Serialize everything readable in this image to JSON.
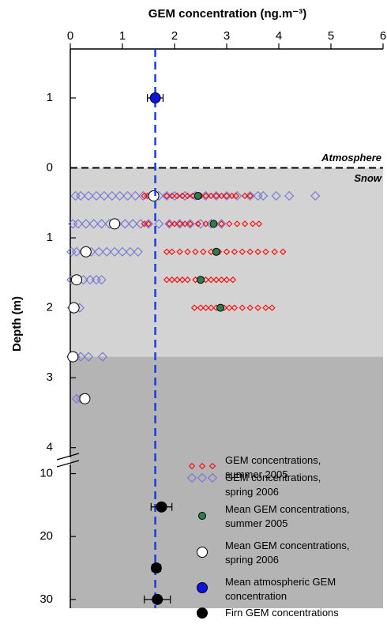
{
  "chart_data": {
    "type": "scatter",
    "title": "GEM concentration (ng.m⁻³)",
    "y_label": "Depth (m)",
    "xlim": [
      0,
      6
    ],
    "xticks": [
      0,
      1,
      2,
      3,
      4,
      5,
      6
    ],
    "ylim": [
      -1.7,
      31.4
    ],
    "y_break": [
      4.15,
      8.3
    ],
    "yticks": [
      {
        "value": -1,
        "label": "1"
      },
      0,
      1,
      2,
      3,
      4,
      10,
      20,
      30
    ],
    "surface": {
      "depth": 0,
      "above_label": "Atmosphere",
      "below_label": "Snow"
    },
    "snow_base": 2.7,
    "snow_color": "#d3d3d3",
    "firn_color": "#b4b4b4",
    "reference_line": {
      "x": 1.63,
      "color": "#1a3fe0"
    },
    "legend": "lower right",
    "series": [
      {
        "name": "GEM concentrations,\nsummer 2005",
        "marker": "small-diamond",
        "color": "#ff0000",
        "x": [
          1.42,
          1.48,
          1.85,
          1.95,
          2.05,
          2.15,
          2.25,
          2.35,
          2.5,
          2.6,
          2.7,
          2.8,
          2.9,
          3.0,
          3.1,
          3.18,
          3.35,
          3.45,
          1.42,
          1.5,
          1.9,
          2.0,
          2.1,
          2.2,
          2.3,
          2.45,
          2.6,
          2.75,
          2.9,
          3.05,
          3.2,
          3.35,
          3.5,
          3.62,
          1.85,
          1.95,
          2.1,
          2.25,
          2.4,
          2.55,
          2.7,
          2.85,
          3.0,
          3.15,
          3.3,
          3.45,
          3.6,
          3.75,
          3.92,
          4.08,
          1.85,
          1.95,
          2.05,
          2.15,
          2.25,
          2.4,
          2.5,
          2.6,
          2.7,
          2.8,
          2.9,
          3.0,
          3.12,
          2.38,
          2.5,
          2.6,
          2.7,
          2.8,
          2.95,
          3.05,
          3.15,
          3.3,
          3.45,
          3.6,
          3.75,
          3.87
        ],
        "y": [
          0.4,
          0.4,
          0.4,
          0.4,
          0.4,
          0.4,
          0.4,
          0.4,
          0.4,
          0.4,
          0.4,
          0.4,
          0.4,
          0.4,
          0.4,
          0.4,
          0.4,
          0.4,
          0.8,
          0.8,
          0.8,
          0.8,
          0.8,
          0.8,
          0.8,
          0.8,
          0.8,
          0.8,
          0.8,
          0.8,
          0.8,
          0.8,
          0.8,
          0.8,
          1.2,
          1.2,
          1.2,
          1.2,
          1.2,
          1.2,
          1.2,
          1.2,
          1.2,
          1.2,
          1.2,
          1.2,
          1.2,
          1.2,
          1.2,
          1.2,
          1.6,
          1.6,
          1.6,
          1.6,
          1.6,
          1.6,
          1.6,
          1.6,
          1.6,
          1.6,
          1.6,
          1.6,
          1.6,
          2.0,
          2.0,
          2.0,
          2.0,
          2.0,
          2.0,
          2.0,
          2.0,
          2.0,
          2.0,
          2.0,
          2.0,
          2.0
        ]
      },
      {
        "name": "GEM concentrations,\nspring 2006",
        "marker": "diamond",
        "color": "#7474d4",
        "x": [
          0.1,
          0.2,
          0.35,
          0.5,
          0.65,
          0.8,
          0.95,
          1.1,
          1.25,
          1.4,
          1.55,
          1.7,
          1.85,
          2.0,
          2.2,
          2.4,
          2.6,
          2.8,
          3.0,
          3.2,
          3.45,
          3.6,
          3.7,
          3.95,
          4.2,
          4.7,
          0.05,
          0.15,
          0.3,
          0.45,
          0.6,
          0.75,
          0.9,
          1.05,
          1.2,
          1.35,
          1.5,
          1.7,
          1.9,
          2.1,
          2.3,
          2.5,
          2.7,
          2.9,
          0.02,
          0.12,
          0.25,
          0.4,
          0.55,
          0.7,
          0.85,
          1.0,
          1.15,
          1.3,
          0.02,
          0.12,
          0.25,
          0.38,
          0.5,
          0.6,
          0.03,
          0.1,
          0.18,
          0.02,
          0.1,
          0.2,
          0.35,
          0.62,
          0.12,
          0.2,
          0.28
        ],
        "y": [
          0.4,
          0.4,
          0.4,
          0.4,
          0.4,
          0.4,
          0.4,
          0.4,
          0.4,
          0.4,
          0.4,
          0.4,
          0.4,
          0.4,
          0.4,
          0.4,
          0.4,
          0.4,
          0.4,
          0.4,
          0.4,
          0.4,
          0.4,
          0.4,
          0.4,
          0.4,
          0.8,
          0.8,
          0.8,
          0.8,
          0.8,
          0.8,
          0.8,
          0.8,
          0.8,
          0.8,
          0.8,
          0.8,
          0.8,
          0.8,
          0.8,
          0.8,
          0.8,
          0.8,
          1.2,
          1.2,
          1.2,
          1.2,
          1.2,
          1.2,
          1.2,
          1.2,
          1.2,
          1.2,
          1.6,
          1.6,
          1.6,
          1.6,
          1.6,
          1.6,
          2.0,
          2.0,
          2.0,
          2.7,
          2.7,
          2.7,
          2.7,
          2.7,
          3.3,
          3.3,
          3.3
        ]
      },
      {
        "name": "Mean GEM concentrations,\nsummer 2005",
        "marker": "small-circle",
        "color": "#2e7d4a",
        "x": [
          2.45,
          2.75,
          2.8,
          2.5,
          2.88
        ],
        "y": [
          0.4,
          0.8,
          1.2,
          1.6,
          2.0
        ]
      },
      {
        "name": "Mean GEM concentrations,\nspring 2006",
        "marker": "circle",
        "color": "#ffffff",
        "x": [
          1.6,
          0.85,
          0.3,
          0.12,
          0.07,
          0.05,
          0.28
        ],
        "y": [
          0.4,
          0.8,
          1.2,
          1.6,
          2.0,
          2.7,
          3.3
        ]
      },
      {
        "name": "Mean atmospheric GEM\nconcentration",
        "marker": "circle",
        "color": "#1010e0",
        "x": [
          1.63
        ],
        "y": [
          -1
        ],
        "xerr": [
          0.15
        ]
      },
      {
        "name": "Firn GEM concentrations",
        "marker": "circle",
        "color": "#000000",
        "x": [
          1.75,
          1.65,
          1.67
        ],
        "y": [
          15.3,
          25,
          30
        ],
        "xerr": [
          0.2,
          0.08,
          0.25
        ]
      }
    ]
  }
}
